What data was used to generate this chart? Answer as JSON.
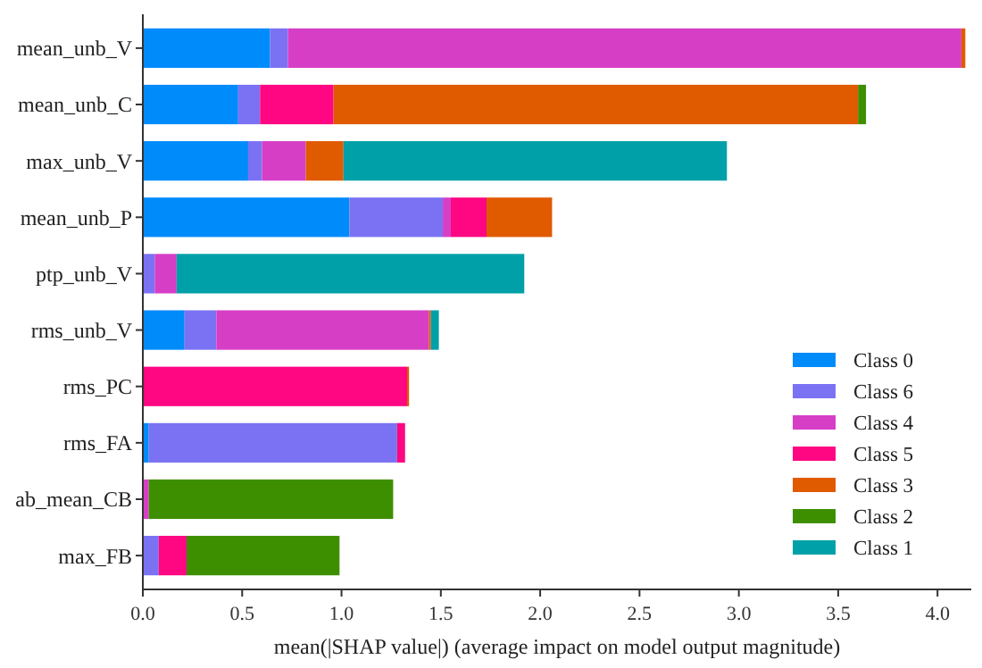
{
  "chart_data": {
    "type": "bar",
    "orientation": "horizontal",
    "stacked": true,
    "xlabel": "mean(|SHAP value|) (average impact on model output magnitude)",
    "categories": [
      "mean_unb_V",
      "mean_unb_C",
      "max_unb_V",
      "mean_unb_P",
      "ptp_unb_V",
      "rms_unb_V",
      "rms_PC",
      "rms_FA",
      "ab_mean_CB",
      "max_FB"
    ],
    "series": [
      {
        "name": "Class 0",
        "color": "#008bfb",
        "values": [
          0.64,
          0.48,
          0.53,
          1.04,
          0,
          0.21,
          0,
          0.03,
          0,
          null
        ]
      },
      {
        "name": "Class 6",
        "color": "#7a72f3",
        "values": [
          0.09,
          0.11,
          0.07,
          0.47,
          0.06,
          0.16,
          0,
          1.25,
          0,
          0.08
        ]
      },
      {
        "name": "Class 4",
        "color": "#d63ec6",
        "values": [
          3.39,
          0,
          0.22,
          0.04,
          0.11,
          1.07,
          0,
          0,
          0.03,
          0
        ]
      },
      {
        "name": "Class 5",
        "color": "#ff0682",
        "values": [
          0,
          0.37,
          0,
          0.18,
          0,
          0,
          1.33,
          0.04,
          0,
          0.14
        ]
      },
      {
        "name": "Class 3",
        "color": "#e05a00",
        "values": [
          0.02,
          2.64,
          0.19,
          0.33,
          0,
          0.01,
          0.01,
          0,
          0,
          0
        ]
      },
      {
        "name": "Class 2",
        "color": "#3e8f00",
        "values": [
          0,
          0.04,
          0,
          0,
          0,
          0,
          0,
          0,
          1.23,
          0.77
        ]
      },
      {
        "name": "Class 1",
        "color": "#00a0a8",
        "values": [
          0,
          0,
          1.93,
          0,
          1.75,
          0.04,
          0,
          0,
          0,
          0
        ]
      }
    ],
    "xlim": [
      0,
      4.17
    ],
    "xticks": [
      {
        "value": 0,
        "label": "0.0"
      },
      {
        "value": 0.5,
        "label": "0.5"
      },
      {
        "value": 1,
        "label": "1.0"
      },
      {
        "value": 1.5,
        "label": "1.5"
      },
      {
        "value": 2,
        "label": "2.0"
      },
      {
        "value": 2.5,
        "label": "2.5"
      },
      {
        "value": 3,
        "label": "3.0"
      },
      {
        "value": 3.5,
        "label": "3.5"
      },
      {
        "value": 4,
        "label": "4.0"
      }
    ],
    "legend": "bottom right",
    "grid": false
  }
}
